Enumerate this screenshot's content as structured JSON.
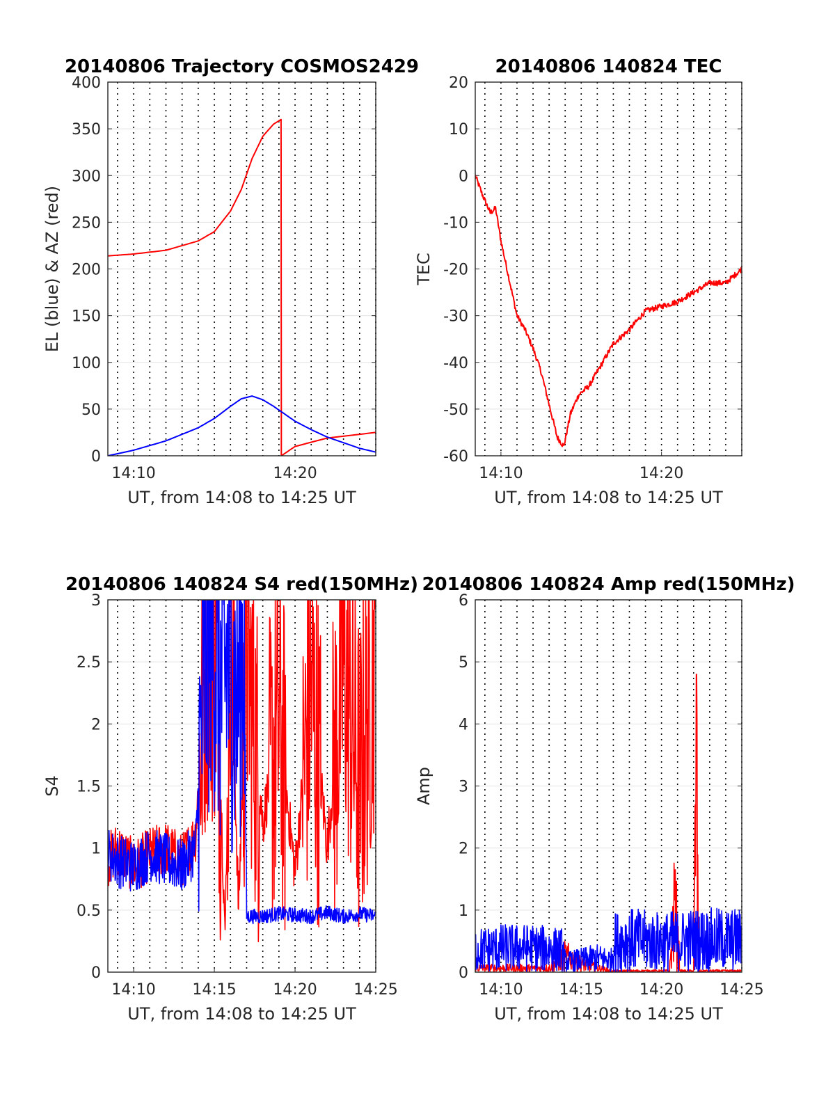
{
  "chart_data": [
    {
      "type": "line",
      "title": "20140806 Trajectory COSMOS2429",
      "xlabel": "UT, from 14:08 to 14:25 UT",
      "ylabel": "EL (blue) & AZ (red)",
      "xlim": [
        "14:08:24",
        "14:25:00"
      ],
      "ylim": [
        0,
        400
      ],
      "xticks": [
        "14:10",
        "14:20"
      ],
      "yticks": [
        "0",
        "50",
        "100",
        "150",
        "200",
        "250",
        "300",
        "350",
        "400"
      ],
      "grid": "horizontal solid at y ticks; vertical dotted every 1 minute",
      "series": [
        {
          "color": "#ff0000",
          "x": [
            "14:08:24",
            "14:10:00",
            "14:12:00",
            "14:14:00",
            "14:15:00",
            "14:16:00",
            "14:16:40",
            "14:17:20",
            "14:18:00",
            "14:18:40",
            "14:19:08",
            "14:19:09",
            "14:20:00",
            "14:22:00",
            "14:25:00"
          ],
          "values": [
            214,
            216,
            220,
            230,
            240,
            262,
            285,
            318,
            342,
            355,
            360,
            0,
            10,
            19,
            25
          ]
        },
        {
          "color": "#0000ff",
          "x": [
            "14:08:24",
            "14:10:00",
            "14:12:00",
            "14:14:00",
            "14:15:00",
            "14:16:00",
            "14:16:40",
            "14:17:20",
            "14:18:00",
            "14:18:40",
            "14:19:20",
            "14:20:00",
            "14:21:00",
            "14:22:00",
            "14:23:00",
            "14:24:00",
            "14:25:00"
          ],
          "values": [
            0,
            6,
            16,
            30,
            40,
            53,
            61,
            64,
            60,
            53,
            45,
            37,
            28,
            20,
            14,
            8,
            4
          ]
        }
      ]
    },
    {
      "type": "line",
      "title": "20140806 140824 TEC",
      "xlabel": "UT, from 14:08 to 14:25 UT",
      "ylabel": "TEC",
      "xlim": [
        "14:08:24",
        "14:25:00"
      ],
      "ylim": [
        -60,
        20
      ],
      "xticks": [
        "14:10",
        "14:20"
      ],
      "yticks": [
        "-60",
        "-50",
        "-40",
        "-30",
        "-20",
        "-10",
        "0",
        "10",
        "20"
      ],
      "grid": "horizontal solid at y ticks; vertical dotted every 1 minute",
      "series": [
        {
          "color": "#ff0000",
          "x": [
            "14:08:24",
            "14:08:50",
            "14:09:20",
            "14:09:40",
            "14:10:00",
            "14:10:30",
            "14:11:00",
            "14:11:30",
            "14:12:00",
            "14:12:30",
            "14:13:00",
            "14:13:30",
            "14:13:55",
            "14:14:20",
            "14:14:50",
            "14:15:30",
            "14:16:00",
            "14:17:00",
            "14:18:00",
            "14:19:00",
            "14:20:00",
            "14:21:00",
            "14:22:00",
            "14:23:00",
            "14:24:00",
            "14:25:00"
          ],
          "values": [
            0,
            -4,
            -8,
            -7,
            -14,
            -22,
            -30,
            -33,
            -37,
            -42,
            -49,
            -56,
            -58,
            -51,
            -47,
            -45,
            -42,
            -36,
            -33,
            -29,
            -28,
            -27,
            -25,
            -23,
            -23,
            -20
          ]
        }
      ]
    },
    {
      "type": "line",
      "title": "20140806 140824 S4 red(150MHz)",
      "xlabel": "UT, from 14:08 to 14:25 UT",
      "ylabel": "S4",
      "xlim": [
        "14:08:24",
        "14:25:00"
      ],
      "ylim": [
        0,
        3
      ],
      "xticks": [
        "14:10",
        "14:15",
        "14:20",
        "14:25"
      ],
      "yticks": [
        "0",
        "0.5",
        "1",
        "1.5",
        "2",
        "2.5",
        "3"
      ],
      "grid": "horizontal solid at y ticks; vertical dotted every 1 minute",
      "series": [
        {
          "color": "#ff0000",
          "x": [
            "14:08:24",
            "14:09:00",
            "14:10:00",
            "14:11:00",
            "14:12:00",
            "14:13:00",
            "14:13:50",
            "14:14:30",
            "14:15:10",
            "14:15:40",
            "14:16:00",
            "14:16:30",
            "14:17:00",
            "14:18:00",
            "14:19:00",
            "14:20:00",
            "14:21:00",
            "14:22:00",
            "14:23:00",
            "14:24:00",
            "14:25:00"
          ],
          "values": [
            0.9,
            1.0,
            0.85,
            0.95,
            1.0,
            0.9,
            1.1,
            2.6,
            2.5,
            0.3,
            2.9,
            0.5,
            2.6,
            1.2,
            2.0,
            0.8,
            2.3,
            1.0,
            2.5,
            1.5,
            2.6
          ]
        },
        {
          "color": "#0000ff",
          "x": [
            "14:08:24",
            "14:09:00",
            "14:10:00",
            "14:11:00",
            "14:12:00",
            "14:13:00",
            "14:13:50",
            "14:14:20",
            "14:14:50",
            "14:15:20",
            "14:15:50",
            "14:16:20",
            "14:16:50",
            "14:17:00",
            "14:18:00",
            "14:19:00",
            "14:20:00",
            "14:21:00",
            "14:22:00",
            "14:23:00",
            "14:24:00",
            "14:25:00"
          ],
          "values": [
            0.95,
            0.9,
            0.85,
            0.95,
            0.9,
            0.85,
            1.0,
            2.3,
            2.8,
            2.3,
            2.5,
            2.2,
            2.7,
            0.45,
            0.45,
            0.47,
            0.46,
            0.45,
            0.48,
            0.45,
            0.47,
            0.45
          ]
        }
      ]
    },
    {
      "type": "line",
      "title": "20140806 140824 Amp red(150MHz)",
      "xlabel": "UT, from 14:08 to 14:25 UT",
      "ylabel": "Amp",
      "xlim": [
        "14:08:24",
        "14:25:00"
      ],
      "ylim": [
        0,
        6
      ],
      "xticks": [
        "14:10",
        "14:15",
        "14:20",
        "14:25"
      ],
      "yticks": [
        "0",
        "1",
        "2",
        "3",
        "4",
        "5",
        "6"
      ],
      "grid": "horizontal solid at y ticks; vertical dotted every 1 minute",
      "series": [
        {
          "color": "#ff0000",
          "x": [
            "14:08:24",
            "14:13:00",
            "14:14:00",
            "14:15:00",
            "14:16:00",
            "14:17:00",
            "14:20:30",
            "14:20:50",
            "14:21:10",
            "14:22:00",
            "14:22:10",
            "14:22:20",
            "14:23:00",
            "14:25:00"
          ],
          "values": [
            0.1,
            0.1,
            0.4,
            0.2,
            0.1,
            0.03,
            0.03,
            1.65,
            0.03,
            0.03,
            4.8,
            0.03,
            0.03,
            0.03
          ]
        },
        {
          "color": "#0000ff",
          "x": [
            "14:08:24",
            "14:10:00",
            "14:12:00",
            "14:13:50",
            "14:14:00",
            "14:15:00",
            "14:16:00",
            "14:16:55",
            "14:17:00",
            "14:18:00",
            "14:20:00",
            "14:22:00",
            "14:25:00"
          ],
          "values": [
            0.55,
            0.6,
            0.6,
            0.55,
            0.25,
            0.3,
            0.35,
            0.3,
            0.75,
            0.8,
            0.75,
            0.8,
            0.8
          ]
        }
      ]
    }
  ]
}
